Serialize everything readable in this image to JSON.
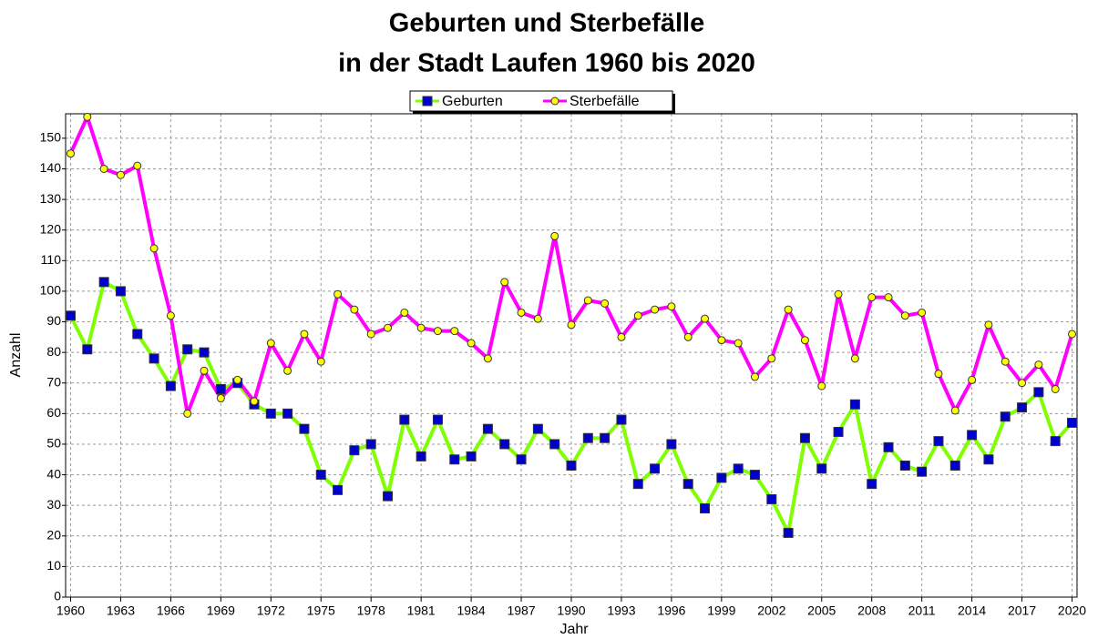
{
  "chart_data": {
    "type": "line",
    "title": [
      "Geburten und Sterbefälle",
      "in der Stadt Laufen 1960 bis 2020"
    ],
    "xlabel": "Jahr",
    "ylabel": "Anzahl",
    "x": [
      1960,
      1961,
      1962,
      1963,
      1964,
      1965,
      1966,
      1967,
      1968,
      1969,
      1970,
      1971,
      1972,
      1973,
      1974,
      1975,
      1976,
      1977,
      1978,
      1979,
      1980,
      1981,
      1982,
      1983,
      1984,
      1985,
      1986,
      1987,
      1988,
      1989,
      1990,
      1991,
      1992,
      1993,
      1994,
      1995,
      1996,
      1997,
      1998,
      1999,
      2000,
      2001,
      2002,
      2003,
      2004,
      2005,
      2006,
      2007,
      2008,
      2009,
      2010,
      2011,
      2012,
      2013,
      2014,
      2015,
      2016,
      2017,
      2018,
      2019,
      2020
    ],
    "series": [
      {
        "name": "Geburten",
        "color": "#80ff00",
        "marker_color": "#0000cc",
        "values": [
          92,
          81,
          103,
          100,
          86,
          78,
          69,
          81,
          80,
          68,
          70,
          63,
          60,
          60,
          55,
          40,
          35,
          48,
          50,
          33,
          58,
          46,
          58,
          45,
          46,
          55,
          50,
          45,
          55,
          50,
          43,
          52,
          52,
          58,
          37,
          42,
          50,
          37,
          29,
          39,
          42,
          40,
          32,
          21,
          52,
          42,
          54,
          63,
          37,
          49,
          43,
          41,
          51,
          43,
          53,
          45,
          59,
          62,
          67,
          51,
          57
        ]
      },
      {
        "name": "Sterbefälle",
        "color": "#ff00ff",
        "marker_color": "#ffff00",
        "values": [
          145,
          157,
          140,
          138,
          141,
          114,
          92,
          60,
          74,
          65,
          71,
          64,
          83,
          74,
          86,
          77,
          99,
          94,
          86,
          88,
          93,
          88,
          87,
          87,
          83,
          78,
          103,
          93,
          91,
          118,
          89,
          97,
          96,
          85,
          92,
          94,
          95,
          85,
          91,
          84,
          83,
          72,
          78,
          94,
          84,
          69,
          99,
          78,
          98,
          98,
          92,
          93,
          73,
          61,
          71,
          89,
          77,
          70,
          76,
          68,
          86
        ]
      }
    ],
    "xlim": [
      1959.7,
      2020.3
    ],
    "xticks": [
      1960,
      1963,
      1966,
      1969,
      1972,
      1975,
      1978,
      1981,
      1984,
      1987,
      1990,
      1993,
      1996,
      1999,
      2002,
      2005,
      2008,
      2011,
      2014,
      2017,
      2020
    ],
    "ylim": [
      0,
      158
    ],
    "yticks": [
      0,
      10,
      20,
      30,
      40,
      50,
      60,
      70,
      80,
      90,
      100,
      110,
      120,
      130,
      140,
      150
    ],
    "grid": true,
    "legend": "top"
  }
}
